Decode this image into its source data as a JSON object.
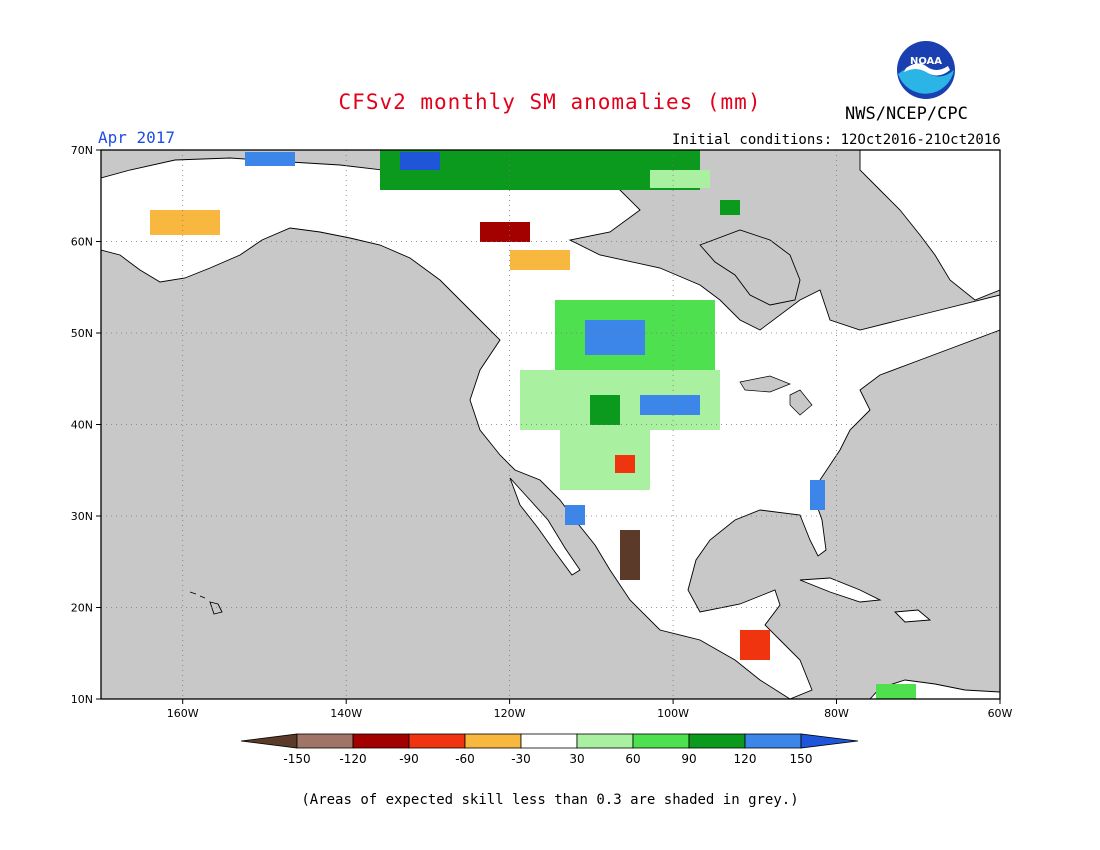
{
  "header": {
    "title": "CFSv2 monthly SM anomalies (mm)",
    "valid_label": "Apr 2017",
    "initial_conditions": "Initial conditions: 12Oct2016-21Oct2016",
    "org": "NWS/NCEP/CPC",
    "logo_text": "NOAA"
  },
  "map": {
    "lat_range": [
      10,
      70
    ],
    "lon_range": [
      -170,
      -60
    ],
    "lat_ticks": [
      "10N",
      "20N",
      "30N",
      "40N",
      "50N",
      "60N",
      "70N"
    ],
    "lon_ticks": [
      "160W",
      "140W",
      "120W",
      "100W",
      "80W",
      "60W"
    ],
    "ocean_color": "#c8c8c8",
    "land_color": "#ffffff"
  },
  "colorbar": {
    "labels": [
      "-150",
      "-120",
      "-90",
      "-60",
      "-30",
      "30",
      "60",
      "90",
      "120",
      "150"
    ],
    "colors": [
      "#5c3a2a",
      "#a07466",
      "#a30000",
      "#f03410",
      "#f8b840",
      "#ffffff",
      "#a9f0a0",
      "#4fe04f",
      "#0c9a1e",
      "#3b86e8",
      "#1f55d8"
    ]
  },
  "footnote": "(Areas of expected skill less than 0.3 are shaded in grey.)"
}
